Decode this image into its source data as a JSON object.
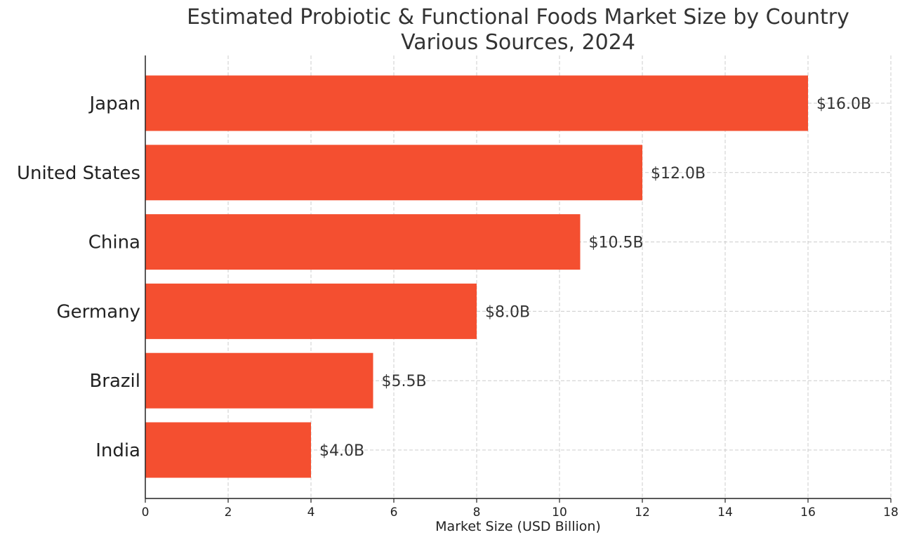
{
  "chart_data": {
    "type": "bar",
    "orientation": "horizontal",
    "title_line1": "Estimated Probiotic & Functional Foods Market Size by Country",
    "title_line2": "Various Sources, 2024",
    "xlabel": "Market Size (USD Billion)",
    "ylabel": "",
    "categories": [
      "Japan",
      "United States",
      "China",
      "Germany",
      "Brazil",
      "India"
    ],
    "values": [
      16.0,
      12.0,
      10.5,
      8.0,
      5.5,
      4.0
    ],
    "value_labels": [
      "$16.0B",
      "$12.0B",
      "$10.5B",
      "$8.0B",
      "$5.5B",
      "$4.0B"
    ],
    "xlim": [
      0,
      18
    ],
    "xticks": [
      0,
      2,
      4,
      6,
      8,
      10,
      12,
      14,
      16,
      18
    ],
    "grid": true,
    "bar_color": "#f44f30"
  }
}
